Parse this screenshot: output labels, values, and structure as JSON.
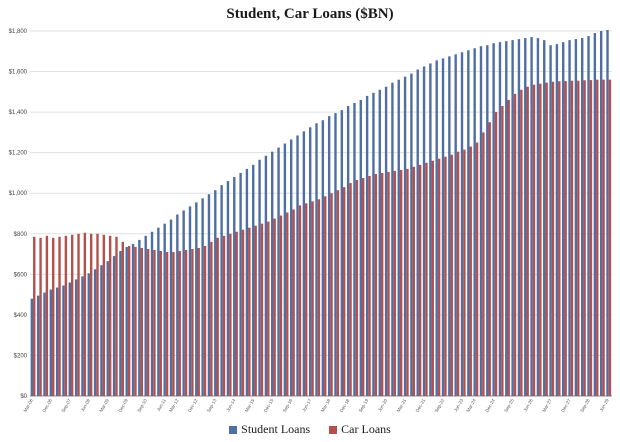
{
  "chart_data": {
    "type": "bar",
    "title": "Student, Car Loans ($BN)",
    "ylim": [
      0,
      1800
    ],
    "yticks": [
      "$0",
      "$200",
      "$400",
      "$600",
      "$800",
      "$1,000",
      "$1,200",
      "$1,400",
      "$1,600",
      "$1,800"
    ],
    "ytick_values": [
      0,
      200,
      400,
      600,
      800,
      1000,
      1200,
      1400,
      1600,
      1800
    ],
    "legend_position": "bottom-center",
    "grid": "horizontal",
    "x_tick_labels": [
      "Mar-06",
      "Dec-06",
      "Sep-07",
      "Jun-08",
      "Mar-09",
      "Dec-09",
      "Sep-10",
      "Jun-11",
      "Mar-12",
      "Dec-12",
      "Sep-13",
      "Jun-14",
      "Mar-15",
      "Dec-15",
      "Sep-16",
      "Jun-17",
      "Mar-18",
      "Dec-18",
      "Sep-19",
      "Jun-20",
      "Mar-21",
      "Dec-21",
      "Sep-22",
      "Jun-23",
      "Mar-24",
      "Dec-24",
      "Sep-25",
      "Jun-26",
      "Mar-27",
      "Dec-27",
      "Sep-28",
      "Jun-29"
    ],
    "series": [
      {
        "name": "Student Loans",
        "color": "#4f6fa3",
        "values": [
          480,
          495,
          510,
          525,
          535,
          545,
          560,
          575,
          590,
          605,
          625,
          645,
          665,
          690,
          715,
          735,
          750,
          770,
          790,
          810,
          830,
          850,
          870,
          895,
          915,
          935,
          955,
          975,
          995,
          1015,
          1040,
          1060,
          1080,
          1100,
          1120,
          1140,
          1165,
          1185,
          1205,
          1225,
          1245,
          1265,
          1285,
          1305,
          1325,
          1345,
          1360,
          1380,
          1395,
          1410,
          1430,
          1445,
          1460,
          1480,
          1495,
          1510,
          1525,
          1545,
          1560,
          1575,
          1590,
          1610,
          1625,
          1640,
          1655,
          1665,
          1675,
          1685,
          1695,
          1705,
          1715,
          1725,
          1730,
          1740,
          1745,
          1750,
          1755,
          1760,
          1765,
          1770,
          1765,
          1755,
          1730,
          1735,
          1745,
          1755,
          1760,
          1765,
          1775,
          1790,
          1800,
          1805
        ]
      },
      {
        "name": "Car Loans",
        "color": "#b5504c",
        "values": [
          785,
          780,
          790,
          780,
          785,
          790,
          795,
          800,
          805,
          800,
          800,
          795,
          790,
          785,
          760,
          740,
          735,
          730,
          725,
          720,
          715,
          710,
          710,
          715,
          720,
          725,
          730,
          740,
          760,
          780,
          790,
          800,
          810,
          820,
          830,
          840,
          850,
          860,
          875,
          890,
          905,
          920,
          940,
          950,
          960,
          970,
          985,
          1000,
          1015,
          1030,
          1050,
          1065,
          1075,
          1085,
          1095,
          1100,
          1105,
          1110,
          1115,
          1120,
          1130,
          1140,
          1150,
          1160,
          1170,
          1180,
          1190,
          1205,
          1215,
          1230,
          1250,
          1300,
          1350,
          1400,
          1430,
          1460,
          1490,
          1510,
          1525,
          1535,
          1540,
          1545,
          1550,
          1552,
          1553,
          1555,
          1555,
          1557,
          1558,
          1560,
          1560,
          1560
        ]
      }
    ]
  }
}
